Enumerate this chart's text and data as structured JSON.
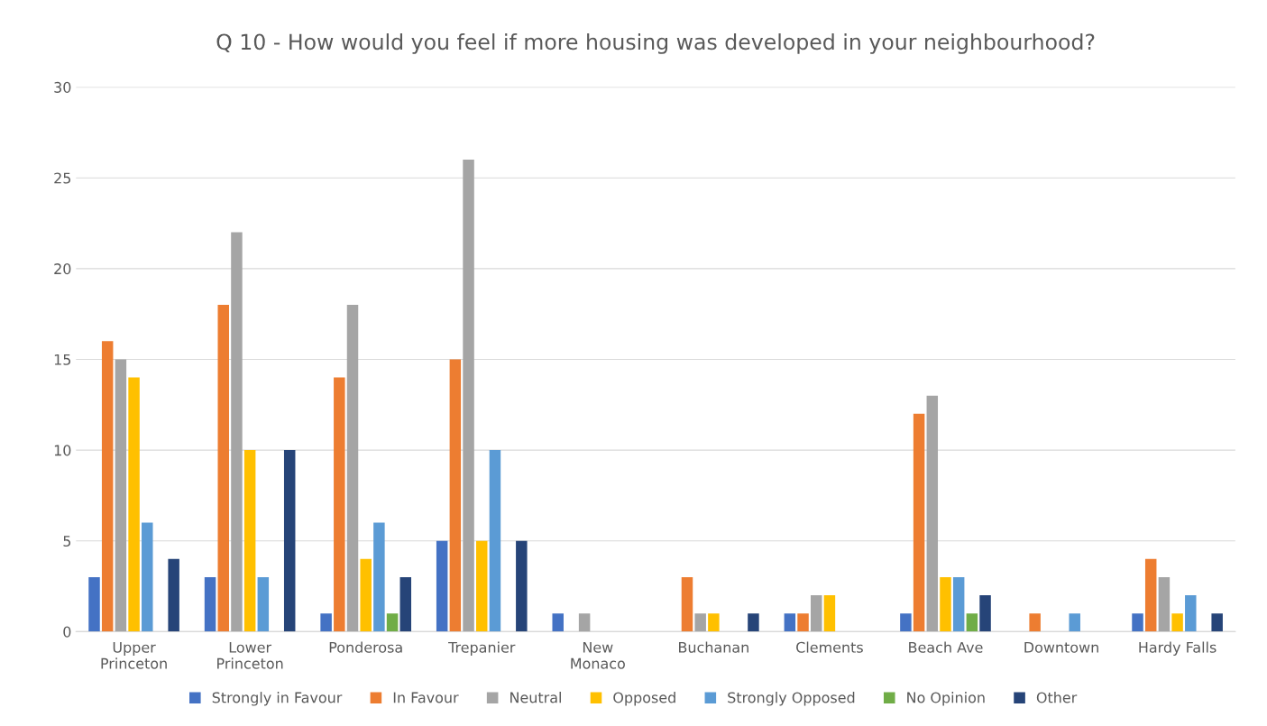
{
  "chart_data": {
    "type": "bar",
    "title": "Q 10 - How would you feel if more housing was developed in your neighbourhood?",
    "categories": [
      "Upper\nPrinceton",
      "Lower\nPrinceton",
      "Ponderosa",
      "Trepanier",
      "New\nMonaco",
      "Buchanan",
      "Clements",
      "Beach Ave",
      "Downtown",
      "Hardy Falls"
    ],
    "series": [
      {
        "name": "Strongly in Favour",
        "color": "#4472c4",
        "values": [
          3,
          3,
          1,
          5,
          1,
          null,
          1,
          1,
          null,
          1
        ]
      },
      {
        "name": "In Favour",
        "color": "#ed7d31",
        "values": [
          16,
          18,
          14,
          15,
          null,
          3,
          1,
          12,
          1,
          4
        ]
      },
      {
        "name": "Neutral",
        "color": "#a5a5a5",
        "values": [
          15,
          22,
          18,
          26,
          1,
          1,
          2,
          13,
          null,
          3
        ]
      },
      {
        "name": "Opposed",
        "color": "#ffc000",
        "values": [
          14,
          10,
          4,
          5,
          null,
          1,
          2,
          3,
          null,
          1
        ]
      },
      {
        "name": "Strongly Opposed",
        "color": "#5b9bd5",
        "values": [
          6,
          3,
          6,
          10,
          null,
          null,
          null,
          3,
          1,
          2
        ]
      },
      {
        "name": "No Opinion",
        "color": "#70ad47",
        "values": [
          null,
          null,
          1,
          null,
          null,
          null,
          null,
          1,
          null,
          null
        ]
      },
      {
        "name": "Other",
        "color": "#264478",
        "values": [
          4,
          10,
          3,
          5,
          null,
          1,
          null,
          2,
          null,
          1
        ]
      }
    ],
    "ylim": [
      0,
      30
    ],
    "yticks": [
      0,
      5,
      10,
      15,
      20,
      25,
      30
    ],
    "grid": "y",
    "legend": "bottom"
  }
}
